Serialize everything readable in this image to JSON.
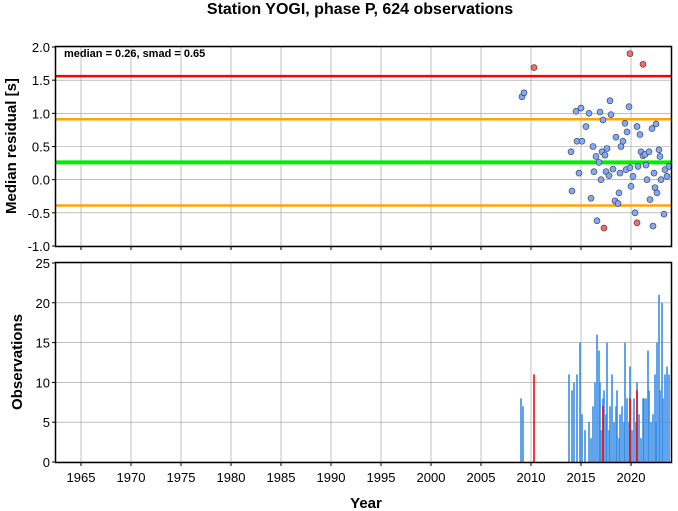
{
  "chart_data": [
    {
      "type": "scatter",
      "title": "Station YOGI, phase P, 624 observations",
      "xlabel": "",
      "ylabel": "Median residual [s]",
      "xlim": [
        1962.5,
        2024
      ],
      "ylim": [
        -1.0,
        2.0
      ],
      "yticks": [
        "-1.0",
        "-0.5",
        "0.0",
        "0.5",
        "1.0",
        "1.5",
        "2.0"
      ],
      "grid": true,
      "annotation": "median = 0.26, smad = 0.65",
      "reference_lines": [
        {
          "value": 1.56,
          "color": "#ff0000"
        },
        {
          "value": 0.91,
          "color": "#ffa500"
        },
        {
          "value": 0.26,
          "color": "#00ee00"
        },
        {
          "value": -0.39,
          "color": "#ffa500"
        }
      ],
      "series": [
        {
          "color": "#7fa9ff",
          "points": [
            [
              2009.1,
              1.25
            ],
            [
              2009.3,
              1.31
            ],
            [
              2014.0,
              0.42
            ],
            [
              2014.1,
              -0.17
            ],
            [
              2014.5,
              1.03
            ],
            [
              2014.6,
              0.58
            ],
            [
              2014.8,
              0.1
            ],
            [
              2015.0,
              1.08
            ],
            [
              2015.1,
              0.58
            ],
            [
              2015.5,
              0.8
            ],
            [
              2015.8,
              1.0
            ],
            [
              2016.0,
              -0.28
            ],
            [
              2016.2,
              0.5
            ],
            [
              2016.3,
              0.12
            ],
            [
              2016.5,
              0.35
            ],
            [
              2016.6,
              -0.62
            ],
            [
              2016.8,
              0.26
            ],
            [
              2016.9,
              1.02
            ],
            [
              2017.0,
              0.0
            ],
            [
              2017.1,
              0.42
            ],
            [
              2017.2,
              0.9
            ],
            [
              2017.4,
              0.37
            ],
            [
              2017.5,
              0.12
            ],
            [
              2017.6,
              0.47
            ],
            [
              2017.8,
              0.06
            ],
            [
              2017.9,
              1.19
            ],
            [
              2018.0,
              0.98
            ],
            [
              2018.2,
              0.16
            ],
            [
              2018.4,
              -0.32
            ],
            [
              2018.5,
              0.64
            ],
            [
              2018.7,
              -0.36
            ],
            [
              2018.8,
              -0.2
            ],
            [
              2018.9,
              0.1
            ],
            [
              2019.0,
              0.5
            ],
            [
              2019.2,
              0.58
            ],
            [
              2019.4,
              0.85
            ],
            [
              2019.5,
              0.15
            ],
            [
              2019.6,
              0.72
            ],
            [
              2019.8,
              1.1
            ],
            [
              2019.9,
              0.18
            ],
            [
              2020.0,
              -0.1
            ],
            [
              2020.2,
              0.05
            ],
            [
              2020.4,
              -0.5
            ],
            [
              2020.6,
              0.8
            ],
            [
              2020.7,
              0.2
            ],
            [
              2020.9,
              0.68
            ],
            [
              2021.0,
              0.42
            ],
            [
              2021.2,
              0.36
            ],
            [
              2021.4,
              0.38
            ],
            [
              2021.5,
              0.22
            ],
            [
              2021.6,
              0.0
            ],
            [
              2021.8,
              0.42
            ],
            [
              2021.9,
              -0.3
            ],
            [
              2022.1,
              0.77
            ],
            [
              2022.2,
              -0.7
            ],
            [
              2022.3,
              0.1
            ],
            [
              2022.4,
              -0.12
            ],
            [
              2022.5,
              0.84
            ],
            [
              2022.6,
              -0.2
            ],
            [
              2022.8,
              0.45
            ],
            [
              2022.9,
              0.35
            ],
            [
              2023.0,
              0.0
            ],
            [
              2023.3,
              -0.52
            ],
            [
              2023.4,
              0.15
            ],
            [
              2023.6,
              0.05
            ],
            [
              2023.8,
              0.2
            ]
          ]
        },
        {
          "color": "#ff6666",
          "points": [
            [
              2010.3,
              1.69
            ],
            [
              2017.3,
              -0.73
            ],
            [
              2019.9,
              1.9
            ],
            [
              2020.6,
              -0.65
            ],
            [
              2021.2,
              1.74
            ]
          ]
        }
      ]
    },
    {
      "type": "bar",
      "xlabel": "Year",
      "ylabel": "Observations",
      "xlim": [
        1962.5,
        2024
      ],
      "ylim": [
        0,
        25
      ],
      "xticks": [
        "1965",
        "1970",
        "1975",
        "1980",
        "1985",
        "1990",
        "1995",
        "2000",
        "2005",
        "2010",
        "2015",
        "2020"
      ],
      "yticks": [
        "0",
        "5",
        "10",
        "15",
        "20",
        "25"
      ],
      "grid": true,
      "series": [
        {
          "color": "#3a8ee6",
          "bars": [
            [
              2009.0,
              8
            ],
            [
              2009.2,
              7
            ],
            [
              2013.8,
              11
            ],
            [
              2014.1,
              9
            ],
            [
              2014.3,
              10
            ],
            [
              2014.6,
              11
            ],
            [
              2014.9,
              15
            ],
            [
              2015.1,
              6
            ],
            [
              2015.4,
              4
            ],
            [
              2015.8,
              5
            ],
            [
              2016.0,
              3
            ],
            [
              2016.2,
              7
            ],
            [
              2016.4,
              10
            ],
            [
              2016.6,
              16
            ],
            [
              2016.8,
              14
            ],
            [
              2016.9,
              10
            ],
            [
              2017.0,
              4
            ],
            [
              2017.2,
              8
            ],
            [
              2017.3,
              9
            ],
            [
              2017.5,
              6
            ],
            [
              2017.6,
              15
            ],
            [
              2017.8,
              4
            ],
            [
              2017.9,
              7
            ],
            [
              2018.1,
              11
            ],
            [
              2018.3,
              5
            ],
            [
              2018.5,
              7
            ],
            [
              2018.6,
              9
            ],
            [
              2018.8,
              3
            ],
            [
              2018.9,
              6
            ],
            [
              2019.1,
              7
            ],
            [
              2019.3,
              5
            ],
            [
              2019.4,
              15
            ],
            [
              2019.6,
              8
            ],
            [
              2019.8,
              5
            ],
            [
              2019.9,
              12
            ],
            [
              2020.1,
              4
            ],
            [
              2020.3,
              8
            ],
            [
              2020.5,
              5
            ],
            [
              2020.6,
              10
            ],
            [
              2020.8,
              6
            ],
            [
              2021.0,
              3
            ],
            [
              2021.2,
              8
            ],
            [
              2021.3,
              8
            ],
            [
              2021.5,
              8
            ],
            [
              2021.7,
              14
            ],
            [
              2021.8,
              9
            ],
            [
              2022.0,
              5
            ],
            [
              2022.2,
              6
            ],
            [
              2022.4,
              11
            ],
            [
              2022.5,
              5
            ],
            [
              2022.6,
              15
            ],
            [
              2022.8,
              21
            ],
            [
              2022.9,
              9
            ],
            [
              2023.1,
              20
            ],
            [
              2023.2,
              8
            ],
            [
              2023.4,
              11
            ],
            [
              2023.6,
              12
            ],
            [
              2023.8,
              11
            ]
          ]
        },
        {
          "color": "#ff0000",
          "bars": [
            [
              2010.3,
              11
            ],
            [
              2017.2,
              7
            ],
            [
              2019.9,
              8
            ],
            [
              2020.6,
              9
            ]
          ]
        }
      ]
    }
  ]
}
